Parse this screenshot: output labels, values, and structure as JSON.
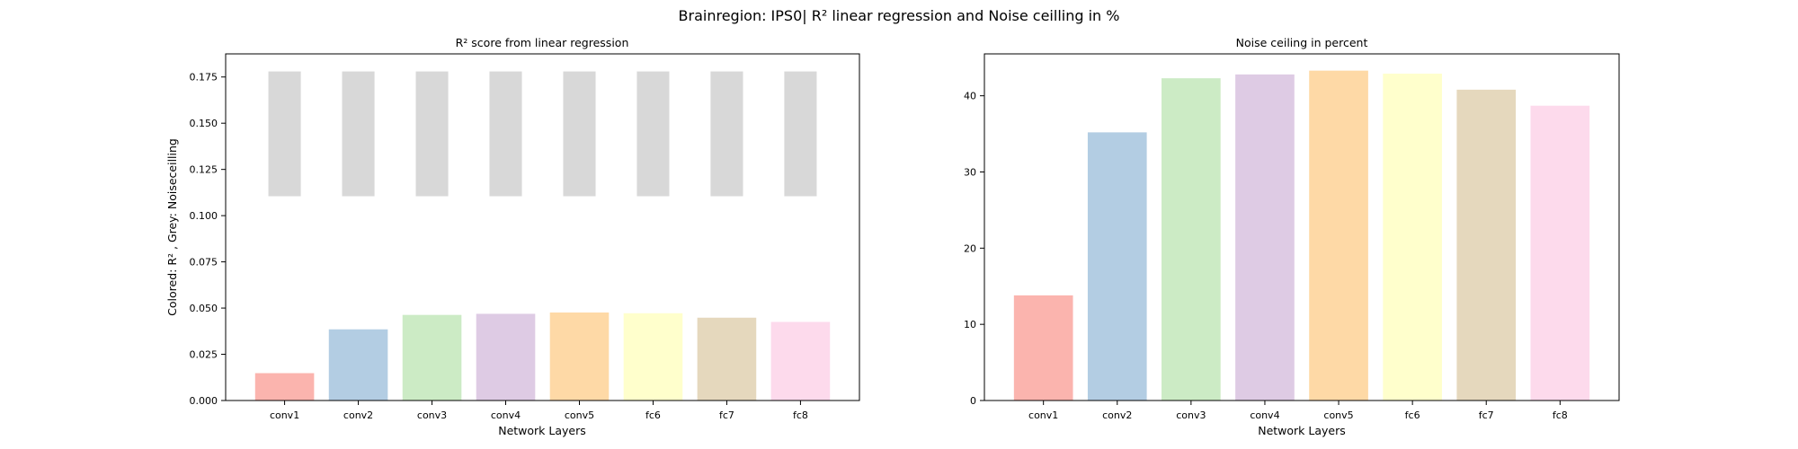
{
  "figure": {
    "suptitle": "Brainregion: IPS0| R² linear regression and Noise ceilling in %"
  },
  "chart_data": [
    {
      "type": "bar",
      "title": "R² score from linear regression",
      "xlabel": "Network Layers",
      "ylabel": "Colored: R² , Grey: Noiseceilling",
      "categories": [
        "conv1",
        "conv2",
        "conv3",
        "conv4",
        "conv5",
        "fc6",
        "fc7",
        "fc8"
      ],
      "ylim": [
        0,
        0.1875
      ],
      "yticks": [
        "0.000",
        "0.025",
        "0.050",
        "0.075",
        "0.100",
        "0.125",
        "0.150",
        "0.175"
      ],
      "grid": false,
      "series": [
        {
          "values": [
            0.0148,
            0.0385,
            0.0463,
            0.0469,
            0.0476,
            0.0472,
            0.0448,
            0.0425
          ],
          "colors": [
            "#fbb4ae",
            "#b3cde3",
            "#ccebc5",
            "#decbe4",
            "#fed9a6",
            "#ffffcc",
            "#e5d8bd",
            "#fddaec"
          ]
        },
        {
          "bottom": [
            0.1105,
            0.1105,
            0.1105,
            0.1105,
            0.1105,
            0.1105,
            0.1105,
            0.1105
          ],
          "top": [
            0.178,
            0.178,
            0.178,
            0.178,
            0.178,
            0.178,
            0.178,
            0.178
          ],
          "color": "#d8d8d8"
        }
      ]
    },
    {
      "type": "bar",
      "title": "Noise ceiling in percent",
      "xlabel": "Network Layers",
      "ylabel": "",
      "categories": [
        "conv1",
        "conv2",
        "conv3",
        "conv4",
        "conv5",
        "fc6",
        "fc7",
        "fc8"
      ],
      "ylim": [
        0,
        45.5
      ],
      "yticks": [
        "0",
        "10",
        "20",
        "30",
        "40"
      ],
      "grid": false,
      "series": [
        {
          "values": [
            13.8,
            35.2,
            42.3,
            42.8,
            43.3,
            42.9,
            40.8,
            38.7
          ],
          "colors": [
            "#fbb4ae",
            "#b3cde3",
            "#ccebc5",
            "#decbe4",
            "#fed9a6",
            "#ffffcc",
            "#e5d8bd",
            "#fddaec"
          ]
        }
      ]
    }
  ]
}
